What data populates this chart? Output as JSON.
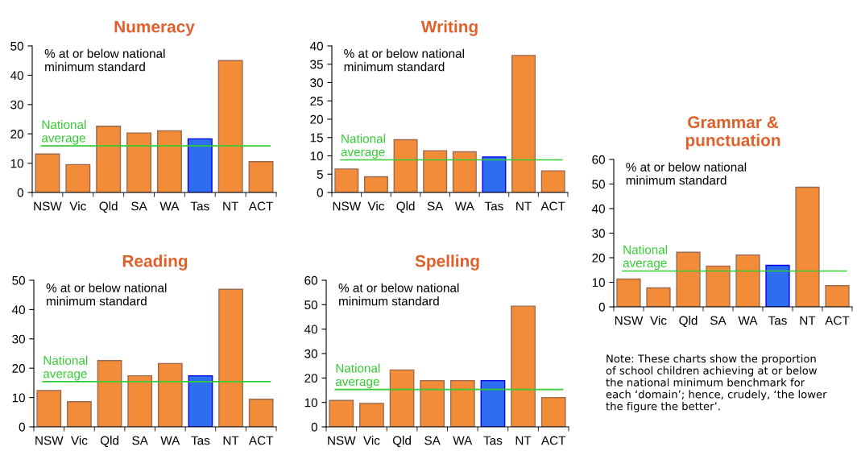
{
  "chart_data": [
    {
      "type": "bar",
      "title": "Numeracy",
      "categories": [
        "NSW",
        "Vic",
        "Qld",
        "SA",
        "WA",
        "Tas",
        "NT",
        "ACT"
      ],
      "values": [
        13.1,
        9.5,
        22.6,
        20.3,
        21.0,
        18.3,
        45,
        10.5
      ],
      "colors": [
        "#f28c38",
        "#f28c38",
        "#f28c38",
        "#f28c38",
        "#f28c38",
        "#2e6cf0",
        "#f28c38",
        "#f28c38"
      ],
      "ylim": [
        0,
        50
      ],
      "yticks": [
        0,
        10,
        20,
        30,
        40,
        50
      ],
      "annotations": [
        "% at or below national\nminimum standard"
      ],
      "ref_lines": [
        {
          "axis": "y",
          "value": 15.9,
          "label": "National\naverage",
          "color": "#33cc33"
        }
      ],
      "grid": false,
      "legend": false
    },
    {
      "type": "bar",
      "title": "Writing",
      "categories": [
        "NSW",
        "Vic",
        "Qld",
        "SA",
        "WA",
        "Tas",
        "NT",
        "ACT"
      ],
      "values": [
        6.4,
        4.3,
        14.4,
        11.4,
        11.1,
        9.7,
        37.4,
        5.9
      ],
      "colors": [
        "#f28c38",
        "#f28c38",
        "#f28c38",
        "#f28c38",
        "#f28c38",
        "#2e6cf0",
        "#f28c38",
        "#f28c38"
      ],
      "ylim": [
        0,
        40
      ],
      "yticks": [
        0,
        5,
        10,
        15,
        20,
        25,
        30,
        35,
        40
      ],
      "annotations": [
        "% at or below national\nminimum standard"
      ],
      "ref_lines": [
        {
          "axis": "y",
          "value": 8.9,
          "label": "National\naverage",
          "color": "#33cc33"
        }
      ],
      "grid": false,
      "legend": false
    },
    {
      "type": "bar",
      "title": "Grammar &\npunctuation",
      "categories": [
        "NSW",
        "Vic",
        "Qld",
        "SA",
        "WA",
        "Tas",
        "NT",
        "ACT"
      ],
      "values": [
        11.3,
        7.7,
        22.2,
        16.6,
        21.1,
        16.9,
        48.7,
        8.6
      ],
      "colors": [
        "#f28c38",
        "#f28c38",
        "#f28c38",
        "#f28c38",
        "#f28c38",
        "#2e6cf0",
        "#f28c38",
        "#f28c38"
      ],
      "ylim": [
        0,
        60
      ],
      "yticks": [
        0,
        10,
        20,
        30,
        40,
        50,
        60
      ],
      "annotations": [
        "% at or below national\nminimum standard"
      ],
      "ref_lines": [
        {
          "axis": "y",
          "value": 14.6,
          "label": "National\naverage",
          "color": "#33cc33"
        }
      ],
      "grid": false,
      "legend": false
    },
    {
      "type": "bar",
      "title": "Reading",
      "categories": [
        "NSW",
        "Vic",
        "Qld",
        "SA",
        "WA",
        "Tas",
        "NT",
        "ACT"
      ],
      "values": [
        12.4,
        8.6,
        22.6,
        17.4,
        21.6,
        17.4,
        46.9,
        9.4
      ],
      "colors": [
        "#f28c38",
        "#f28c38",
        "#f28c38",
        "#f28c38",
        "#f28c38",
        "#2e6cf0",
        "#f28c38",
        "#f28c38"
      ],
      "ylim": [
        0,
        50
      ],
      "yticks": [
        0,
        10,
        20,
        30,
        40,
        50
      ],
      "annotations": [
        "% at or below national\nminimum standard"
      ],
      "ref_lines": [
        {
          "axis": "y",
          "value": 15.4,
          "label": "National\naverage",
          "color": "#33cc33"
        }
      ],
      "grid": false,
      "legend": false
    },
    {
      "type": "bar",
      "title": "Spelling",
      "categories": [
        "NSW",
        "Vic",
        "Qld",
        "SA",
        "WA",
        "Tas",
        "NT",
        "ACT"
      ],
      "values": [
        10.8,
        9.6,
        23.3,
        18.9,
        18.9,
        18.9,
        49.4,
        12.0
      ],
      "colors": [
        "#f28c38",
        "#f28c38",
        "#f28c38",
        "#f28c38",
        "#f28c38",
        "#2e6cf0",
        "#f28c38",
        "#f28c38"
      ],
      "ylim": [
        0,
        60
      ],
      "yticks": [
        0,
        10,
        20,
        30,
        40,
        50,
        60
      ],
      "annotations": [
        "% at or below national\nminimum standard"
      ],
      "ref_lines": [
        {
          "axis": "y",
          "value": 15.3,
          "label": "National\naverage",
          "color": "#33cc33"
        }
      ],
      "grid": false,
      "legend": false
    },
    {
      "type": "other",
      "annotations": [
        "Note: These charts show the proportion\nof school children achieving at or below\nthe national minimum benchmark for\neach ‘domain’; hence, crudely, ‘the lower\nthe figure the better’."
      ]
    }
  ]
}
